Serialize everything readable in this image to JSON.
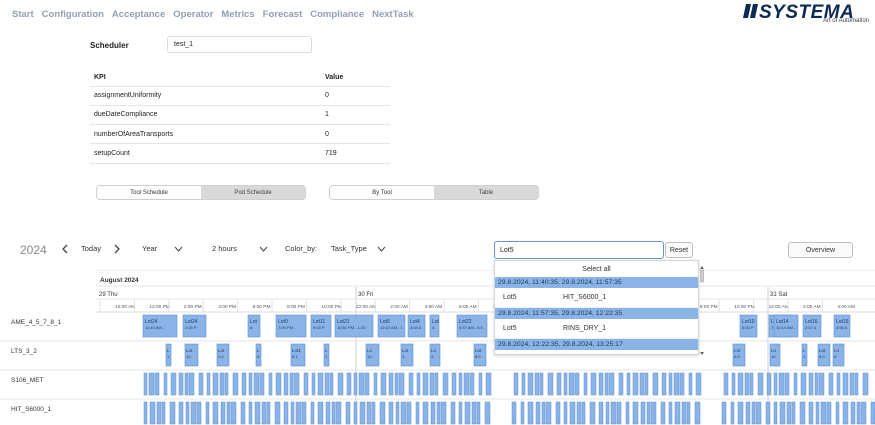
{
  "nav": [
    "Start",
    "Configuration",
    "Acceptance",
    "Operator",
    "Metrics",
    "Forecast",
    "Compliance",
    "NextTask"
  ],
  "logo": {
    "name": "SYSTEMA",
    "tagline": "Art of Automation"
  },
  "scheduler": {
    "label": "Scheduler",
    "value": "test_1"
  },
  "kpi": {
    "headers": [
      "KPI",
      "Value"
    ],
    "rows": [
      [
        "assignmentUniformity",
        "0"
      ],
      [
        "dueDateCompliance",
        "1"
      ],
      [
        "numberOfAreaTransports",
        "0"
      ],
      [
        "setupCount",
        "719"
      ]
    ]
  },
  "toggle1": [
    "Tool Schedule",
    "Pod Schedule"
  ],
  "toggle2": [
    "By Tool",
    "Table"
  ],
  "toolbar": {
    "year": "2024",
    "today": "Today",
    "view": "Year",
    "interval": "2 hours",
    "color_by_label": "Color_by:",
    "color_by": "Task_Type",
    "search": "Lot5",
    "reset": "Reset",
    "overview": "Overview"
  },
  "timeline": {
    "month": "August 2024",
    "days": [
      "29 Thu",
      "30 Fri",
      "31 Sat"
    ],
    "hours": [
      "10:00 AM",
      "12:00 PM",
      "2:00 PM",
      "4:00 PM",
      "6:00 PM",
      "8:00 PM",
      "10:00 PM",
      "12:00 AM",
      "2:00 AM",
      "4:00 AM",
      "6:00 AM",
      "8:00 AM",
      "10:00 AM",
      "12:00 PM",
      "2:00 PM",
      "4:00 PM",
      "6:00 PM",
      "8:00 PM",
      "10:00 PM",
      "12:00 AM",
      "2:00 AM",
      "4:00 AM"
    ]
  },
  "resources": [
    "AME_4_5_7_8_1",
    "LTS_3_2",
    "S106_MET",
    "HIT_S6000_1"
  ],
  "ame_tasks": [
    {
      "lot": "Lot24",
      "time": "11:40 AM -"
    },
    {
      "lot": "Lot24",
      "time": "2:05 P"
    },
    {
      "lot": "Lot",
      "time": "6:"
    },
    {
      "lot": "Lot0",
      "time": "7:09 PM -"
    },
    {
      "lot": "Lot11",
      "time": "9:03 P"
    },
    {
      "lot": "Lot21",
      "time": "10:51 PM - 1:20"
    },
    {
      "lot": "Lot5",
      "time": "12:22 AM - 1"
    },
    {
      "lot": "Lot4",
      "time": "3:04 A"
    },
    {
      "lot": "Lot",
      "time": "4:"
    },
    {
      "lot": "Lot22",
      "time": "5:57 AM - 8:0"
    },
    {
      "lot": "Lot10",
      "time": "5:53 P"
    },
    {
      "lot": "Lot",
      "time": "7:"
    },
    {
      "lot": "Lot14",
      "time": "12:14 AM -"
    },
    {
      "lot": "Lot16",
      "time": "2:07 A"
    },
    {
      "lot": "Lot16",
      "time": "3:55 A"
    }
  ],
  "lts_tasks": [
    {
      "lot": "L",
      "time": "1"
    },
    {
      "lot": "Lot",
      "time": "12:"
    },
    {
      "lot": "Lot",
      "time": "2:0"
    },
    {
      "lot": "L",
      "time": "8:"
    },
    {
      "lot": "Lot1",
      "time": "8:1"
    },
    {
      "lot": "L",
      "time": "1"
    },
    {
      "lot": "Lo",
      "time": "12:"
    },
    {
      "lot": "Lot",
      "time": "3:"
    },
    {
      "lot": "Lo",
      "time": "4:"
    },
    {
      "lot": "Lot",
      "time": "8:5"
    },
    {
      "lot": "Lot",
      "time": "6:5"
    },
    {
      "lot": "Lo",
      "time": "10:"
    },
    {
      "lot": "L",
      "time": "1"
    },
    {
      "lot": "Lot",
      "time": "5:0"
    },
    {
      "lot": "Lo",
      "time": "6:"
    }
  ],
  "dropdown": {
    "select_all": "Select all",
    "groups": [
      {
        "header": "29.8.2024, 11:40:35, 29.8.2024, 11:57:35",
        "lot": "Lot5",
        "tool": "HIT_S6000_1"
      },
      {
        "header": "29.8.2024, 11:57:35, 29.8.2024, 12:22:35",
        "lot": "Lot5",
        "tool": "RINS_DRY_1"
      },
      {
        "header": "29.8.2024, 12:22:35, 29.8.2024, 13:25:17",
        "lot": "",
        "tool": ""
      }
    ]
  },
  "colors": {
    "task": "#8ab4e8",
    "task_border": "#5e8fcf",
    "nav": "#8fa0b4",
    "logo": "#0d2a55"
  },
  "icons": [
    "chevron-left-icon",
    "chevron-right-icon",
    "chevron-down-icon",
    "logo-stripes-icon"
  ]
}
